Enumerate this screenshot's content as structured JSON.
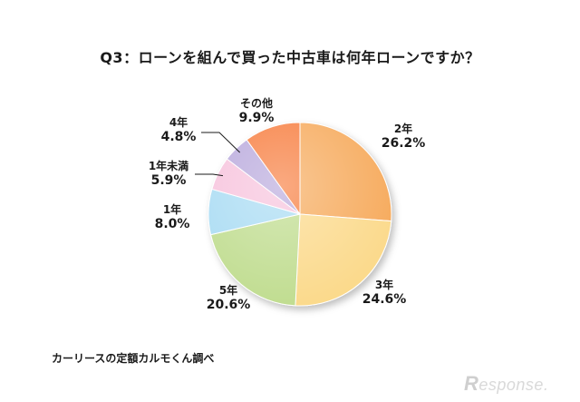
{
  "chart_data": {
    "type": "pie",
    "title": "Q3：ローンを組んで買った中古車は何年ローンですか？",
    "slices": [
      {
        "label": "2年",
        "value": 26.2,
        "pct_text": "26.2%",
        "color": "#f6a95a"
      },
      {
        "label": "3年",
        "value": 24.6,
        "pct_text": "24.6%",
        "color": "#fbd98a"
      },
      {
        "label": "5年",
        "value": 20.6,
        "pct_text": "20.6%",
        "color": "#bfdc8e"
      },
      {
        "label": "1年",
        "value": 8.0,
        "pct_text": "8.0%",
        "color": "#a8dbf3"
      },
      {
        "label": "1年未満",
        "value": 5.9,
        "pct_text": "5.9%",
        "color": "#f7c2dc"
      },
      {
        "label": "4年",
        "value": 4.8,
        "pct_text": "4.8%",
        "color": "#b8a8dc"
      },
      {
        "label": "その他",
        "value": 9.9,
        "pct_text": "9.9%",
        "color": "#f77b3c"
      }
    ],
    "start_angle": "12 o'clock",
    "direction": "clockwise"
  },
  "source": "カーリースの定額カルモくん調べ",
  "watermark": {
    "letter": "R",
    "text": "esponse."
  }
}
